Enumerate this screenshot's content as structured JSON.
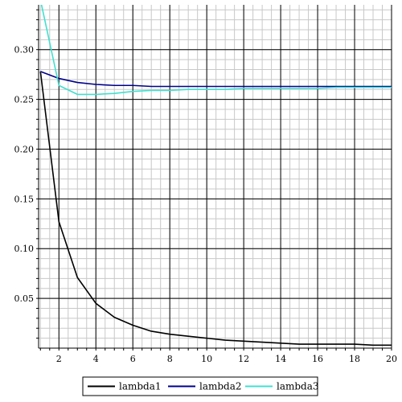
{
  "chart_data": {
    "type": "line",
    "title": "",
    "xlabel": "",
    "ylabel": "",
    "xlim": [
      0.9,
      20
    ],
    "ylim": [
      0.0,
      0.345
    ],
    "grid": true,
    "legend_position": "bottom",
    "x_ticks": [
      2,
      4,
      6,
      8,
      10,
      12,
      14,
      16,
      18,
      20
    ],
    "x_tick_labels": [
      "2",
      "4",
      "6",
      "8",
      "10",
      "12",
      "14",
      "16",
      "18",
      "20"
    ],
    "y_ticks": [
      0.05,
      0.1,
      0.15,
      0.2,
      0.25,
      0.3
    ],
    "y_tick_labels": [
      "0.05",
      "0.10",
      "0.15",
      "0.20",
      "0.25",
      "0.30"
    ],
    "x": [
      1,
      2,
      3,
      4,
      5,
      6,
      7,
      8,
      9,
      10,
      11,
      12,
      13,
      14,
      15,
      16,
      17,
      18,
      19,
      20
    ],
    "series": [
      {
        "name": "lambda1",
        "color": "#000000",
        "values": [
          0.278,
          0.127,
          0.071,
          0.045,
          0.031,
          0.023,
          0.017,
          0.014,
          0.012,
          0.01,
          0.008,
          0.007,
          0.006,
          0.005,
          0.004,
          0.004,
          0.004,
          0.004,
          0.003,
          0.003
        ]
      },
      {
        "name": "lambda2",
        "color": "#00008b",
        "values": [
          0.278,
          0.271,
          0.267,
          0.265,
          0.264,
          0.264,
          0.263,
          0.263,
          0.263,
          0.263,
          0.263,
          0.263,
          0.263,
          0.263,
          0.263,
          0.263,
          0.263,
          0.263,
          0.263,
          0.263
        ]
      },
      {
        "name": "lambda3",
        "color": "#40e0d0",
        "values": [
          0.35,
          0.264,
          0.255,
          0.255,
          0.256,
          0.258,
          0.259,
          0.259,
          0.26,
          0.26,
          0.26,
          0.261,
          0.261,
          0.261,
          0.261,
          0.261,
          0.262,
          0.262,
          0.262,
          0.262
        ]
      }
    ]
  }
}
